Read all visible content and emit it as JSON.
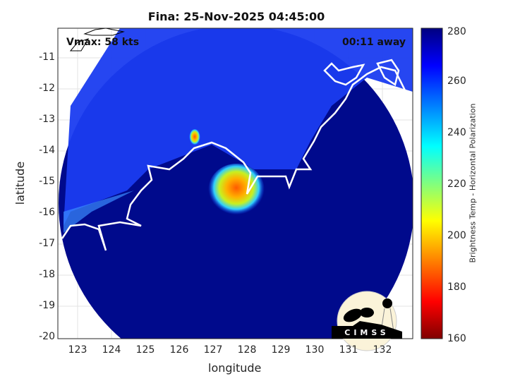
{
  "title": "Fina: 25-Nov-2025 04:45:00",
  "vmax_label": "Vmax: 58 kts",
  "time_label": "00:11 away",
  "xlabel": "longitude",
  "ylabel": "latitude",
  "colorbar": {
    "label": "Brightness Temp - Horizontal Polarization",
    "ticks": [
      "280",
      "260",
      "240",
      "220",
      "200",
      "180",
      "160"
    ],
    "range": [
      160,
      280
    ]
  },
  "x_ticks": [
    "123",
    "124",
    "125",
    "126",
    "127",
    "128",
    "129",
    "130",
    "131",
    "132"
  ],
  "y_ticks": [
    "-11",
    "-12",
    "-13",
    "-14",
    "-15",
    "-16",
    "-17",
    "-18",
    "-19",
    "-20"
  ],
  "map": {
    "lon_range": [
      122.4,
      132.9
    ],
    "lat_range": [
      -20.05,
      -10.05
    ],
    "storm_center": [
      127.8,
      -15.3
    ]
  },
  "logo": "CIMSS"
}
